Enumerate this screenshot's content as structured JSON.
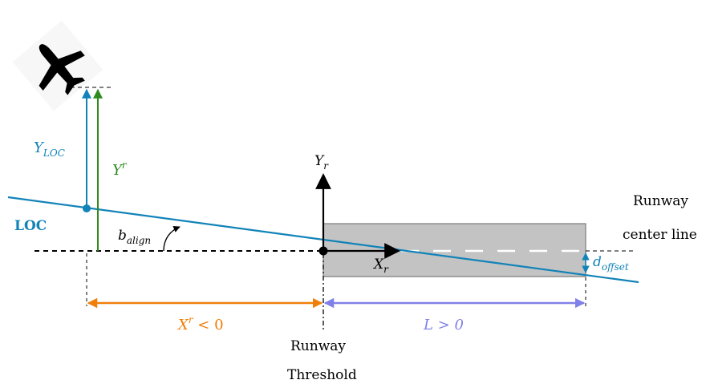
{
  "labels": {
    "y_loc": "Y",
    "y_loc_sub": "LOC",
    "y_r": "Y",
    "y_r_sup": "r",
    "loc": "LOC",
    "b_align": "b",
    "b_align_sub": "align",
    "axis_y": "Y",
    "axis_y_sub": "r",
    "axis_x": "X",
    "axis_x_sub": "r",
    "d_offset": "d",
    "d_offset_sub": "offset",
    "runway_center_line_1": "Runway",
    "runway_center_line_2": "center line",
    "x_r_lt0": "X",
    "x_r_lt0_sup": "r",
    "x_r_lt0_rest": " < 0",
    "l_gt0": "L > 0",
    "runway_threshold_1": "Runway",
    "runway_threshold_2": "Threshold"
  },
  "colors": {
    "loc_blue": "#1283b8",
    "green": "#2e8b1e",
    "orange": "#f07f0a",
    "purple": "#8080e8",
    "runway_gray": "#c3c3c3",
    "black": "#000000"
  }
}
